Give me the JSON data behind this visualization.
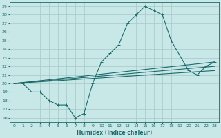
{
  "xlabel": "Humidex (Indice chaleur)",
  "bg_color": "#c8e8e8",
  "grid_color": "#a8c8c8",
  "line_color": "#1a6b6b",
  "xlim": [
    -0.5,
    23.5
  ],
  "ylim": [
    15.5,
    29.5
  ],
  "xticks": [
    0,
    1,
    2,
    3,
    4,
    5,
    6,
    7,
    8,
    9,
    10,
    11,
    12,
    13,
    14,
    15,
    16,
    17,
    18,
    19,
    20,
    21,
    22,
    23
  ],
  "yticks": [
    16,
    17,
    18,
    19,
    20,
    21,
    22,
    23,
    24,
    25,
    26,
    27,
    28,
    29
  ],
  "line1_x": [
    0,
    1,
    2,
    3,
    4,
    5,
    6,
    7,
    8,
    9,
    10,
    11,
    12,
    13,
    14,
    15,
    16,
    17,
    18,
    20,
    21,
    22,
    23
  ],
  "line1_y": [
    20,
    20,
    19,
    19,
    18,
    17.5,
    17.5,
    16,
    16.5,
    20,
    22.5,
    23.5,
    24.5,
    27,
    28,
    29,
    28.5,
    28,
    25,
    21.5,
    21,
    22,
    22.5
  ],
  "line2_x": [
    0,
    23
  ],
  "line2_y": [
    20,
    22.5
  ],
  "line3_x": [
    0,
    23
  ],
  "line3_y": [
    20,
    21.5
  ],
  "line4_x": [
    0,
    23
  ],
  "line4_y": [
    20,
    22.0
  ]
}
